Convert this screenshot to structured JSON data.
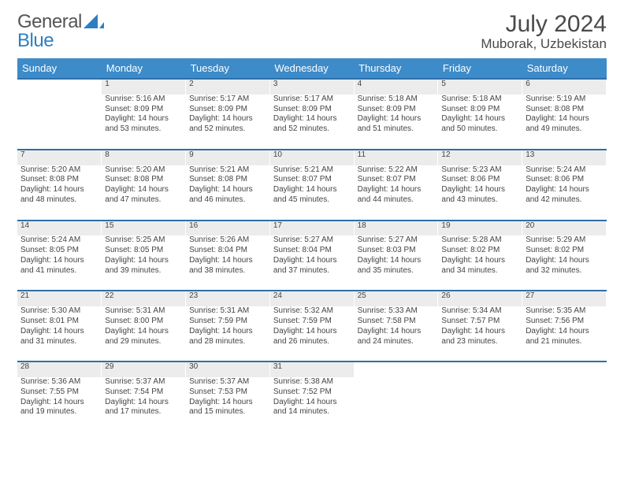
{
  "brand": {
    "part1": "General",
    "part2": "Blue"
  },
  "title": "July 2024",
  "location": "Muborak, Uzbekistan",
  "colors": {
    "header_bg": "#3d8bc9",
    "rule": "#2d6fa8",
    "daynum_bg": "#ececec",
    "text": "#444444",
    "brand_blue": "#2d7fc1"
  },
  "weekdays": [
    "Sunday",
    "Monday",
    "Tuesday",
    "Wednesday",
    "Thursday",
    "Friday",
    "Saturday"
  ],
  "weeks": [
    [
      null,
      {
        "n": "1",
        "sr": "Sunrise: 5:16 AM",
        "ss": "Sunset: 8:09 PM",
        "d1": "Daylight: 14 hours",
        "d2": "and 53 minutes."
      },
      {
        "n": "2",
        "sr": "Sunrise: 5:17 AM",
        "ss": "Sunset: 8:09 PM",
        "d1": "Daylight: 14 hours",
        "d2": "and 52 minutes."
      },
      {
        "n": "3",
        "sr": "Sunrise: 5:17 AM",
        "ss": "Sunset: 8:09 PM",
        "d1": "Daylight: 14 hours",
        "d2": "and 52 minutes."
      },
      {
        "n": "4",
        "sr": "Sunrise: 5:18 AM",
        "ss": "Sunset: 8:09 PM",
        "d1": "Daylight: 14 hours",
        "d2": "and 51 minutes."
      },
      {
        "n": "5",
        "sr": "Sunrise: 5:18 AM",
        "ss": "Sunset: 8:09 PM",
        "d1": "Daylight: 14 hours",
        "d2": "and 50 minutes."
      },
      {
        "n": "6",
        "sr": "Sunrise: 5:19 AM",
        "ss": "Sunset: 8:08 PM",
        "d1": "Daylight: 14 hours",
        "d2": "and 49 minutes."
      }
    ],
    [
      {
        "n": "7",
        "sr": "Sunrise: 5:20 AM",
        "ss": "Sunset: 8:08 PM",
        "d1": "Daylight: 14 hours",
        "d2": "and 48 minutes."
      },
      {
        "n": "8",
        "sr": "Sunrise: 5:20 AM",
        "ss": "Sunset: 8:08 PM",
        "d1": "Daylight: 14 hours",
        "d2": "and 47 minutes."
      },
      {
        "n": "9",
        "sr": "Sunrise: 5:21 AM",
        "ss": "Sunset: 8:08 PM",
        "d1": "Daylight: 14 hours",
        "d2": "and 46 minutes."
      },
      {
        "n": "10",
        "sr": "Sunrise: 5:21 AM",
        "ss": "Sunset: 8:07 PM",
        "d1": "Daylight: 14 hours",
        "d2": "and 45 minutes."
      },
      {
        "n": "11",
        "sr": "Sunrise: 5:22 AM",
        "ss": "Sunset: 8:07 PM",
        "d1": "Daylight: 14 hours",
        "d2": "and 44 minutes."
      },
      {
        "n": "12",
        "sr": "Sunrise: 5:23 AM",
        "ss": "Sunset: 8:06 PM",
        "d1": "Daylight: 14 hours",
        "d2": "and 43 minutes."
      },
      {
        "n": "13",
        "sr": "Sunrise: 5:24 AM",
        "ss": "Sunset: 8:06 PM",
        "d1": "Daylight: 14 hours",
        "d2": "and 42 minutes."
      }
    ],
    [
      {
        "n": "14",
        "sr": "Sunrise: 5:24 AM",
        "ss": "Sunset: 8:05 PM",
        "d1": "Daylight: 14 hours",
        "d2": "and 41 minutes."
      },
      {
        "n": "15",
        "sr": "Sunrise: 5:25 AM",
        "ss": "Sunset: 8:05 PM",
        "d1": "Daylight: 14 hours",
        "d2": "and 39 minutes."
      },
      {
        "n": "16",
        "sr": "Sunrise: 5:26 AM",
        "ss": "Sunset: 8:04 PM",
        "d1": "Daylight: 14 hours",
        "d2": "and 38 minutes."
      },
      {
        "n": "17",
        "sr": "Sunrise: 5:27 AM",
        "ss": "Sunset: 8:04 PM",
        "d1": "Daylight: 14 hours",
        "d2": "and 37 minutes."
      },
      {
        "n": "18",
        "sr": "Sunrise: 5:27 AM",
        "ss": "Sunset: 8:03 PM",
        "d1": "Daylight: 14 hours",
        "d2": "and 35 minutes."
      },
      {
        "n": "19",
        "sr": "Sunrise: 5:28 AM",
        "ss": "Sunset: 8:02 PM",
        "d1": "Daylight: 14 hours",
        "d2": "and 34 minutes."
      },
      {
        "n": "20",
        "sr": "Sunrise: 5:29 AM",
        "ss": "Sunset: 8:02 PM",
        "d1": "Daylight: 14 hours",
        "d2": "and 32 minutes."
      }
    ],
    [
      {
        "n": "21",
        "sr": "Sunrise: 5:30 AM",
        "ss": "Sunset: 8:01 PM",
        "d1": "Daylight: 14 hours",
        "d2": "and 31 minutes."
      },
      {
        "n": "22",
        "sr": "Sunrise: 5:31 AM",
        "ss": "Sunset: 8:00 PM",
        "d1": "Daylight: 14 hours",
        "d2": "and 29 minutes."
      },
      {
        "n": "23",
        "sr": "Sunrise: 5:31 AM",
        "ss": "Sunset: 7:59 PM",
        "d1": "Daylight: 14 hours",
        "d2": "and 28 minutes."
      },
      {
        "n": "24",
        "sr": "Sunrise: 5:32 AM",
        "ss": "Sunset: 7:59 PM",
        "d1": "Daylight: 14 hours",
        "d2": "and 26 minutes."
      },
      {
        "n": "25",
        "sr": "Sunrise: 5:33 AM",
        "ss": "Sunset: 7:58 PM",
        "d1": "Daylight: 14 hours",
        "d2": "and 24 minutes."
      },
      {
        "n": "26",
        "sr": "Sunrise: 5:34 AM",
        "ss": "Sunset: 7:57 PM",
        "d1": "Daylight: 14 hours",
        "d2": "and 23 minutes."
      },
      {
        "n": "27",
        "sr": "Sunrise: 5:35 AM",
        "ss": "Sunset: 7:56 PM",
        "d1": "Daylight: 14 hours",
        "d2": "and 21 minutes."
      }
    ],
    [
      {
        "n": "28",
        "sr": "Sunrise: 5:36 AM",
        "ss": "Sunset: 7:55 PM",
        "d1": "Daylight: 14 hours",
        "d2": "and 19 minutes."
      },
      {
        "n": "29",
        "sr": "Sunrise: 5:37 AM",
        "ss": "Sunset: 7:54 PM",
        "d1": "Daylight: 14 hours",
        "d2": "and 17 minutes."
      },
      {
        "n": "30",
        "sr": "Sunrise: 5:37 AM",
        "ss": "Sunset: 7:53 PM",
        "d1": "Daylight: 14 hours",
        "d2": "and 15 minutes."
      },
      {
        "n": "31",
        "sr": "Sunrise: 5:38 AM",
        "ss": "Sunset: 7:52 PM",
        "d1": "Daylight: 14 hours",
        "d2": "and 14 minutes."
      },
      null,
      null,
      null
    ]
  ]
}
